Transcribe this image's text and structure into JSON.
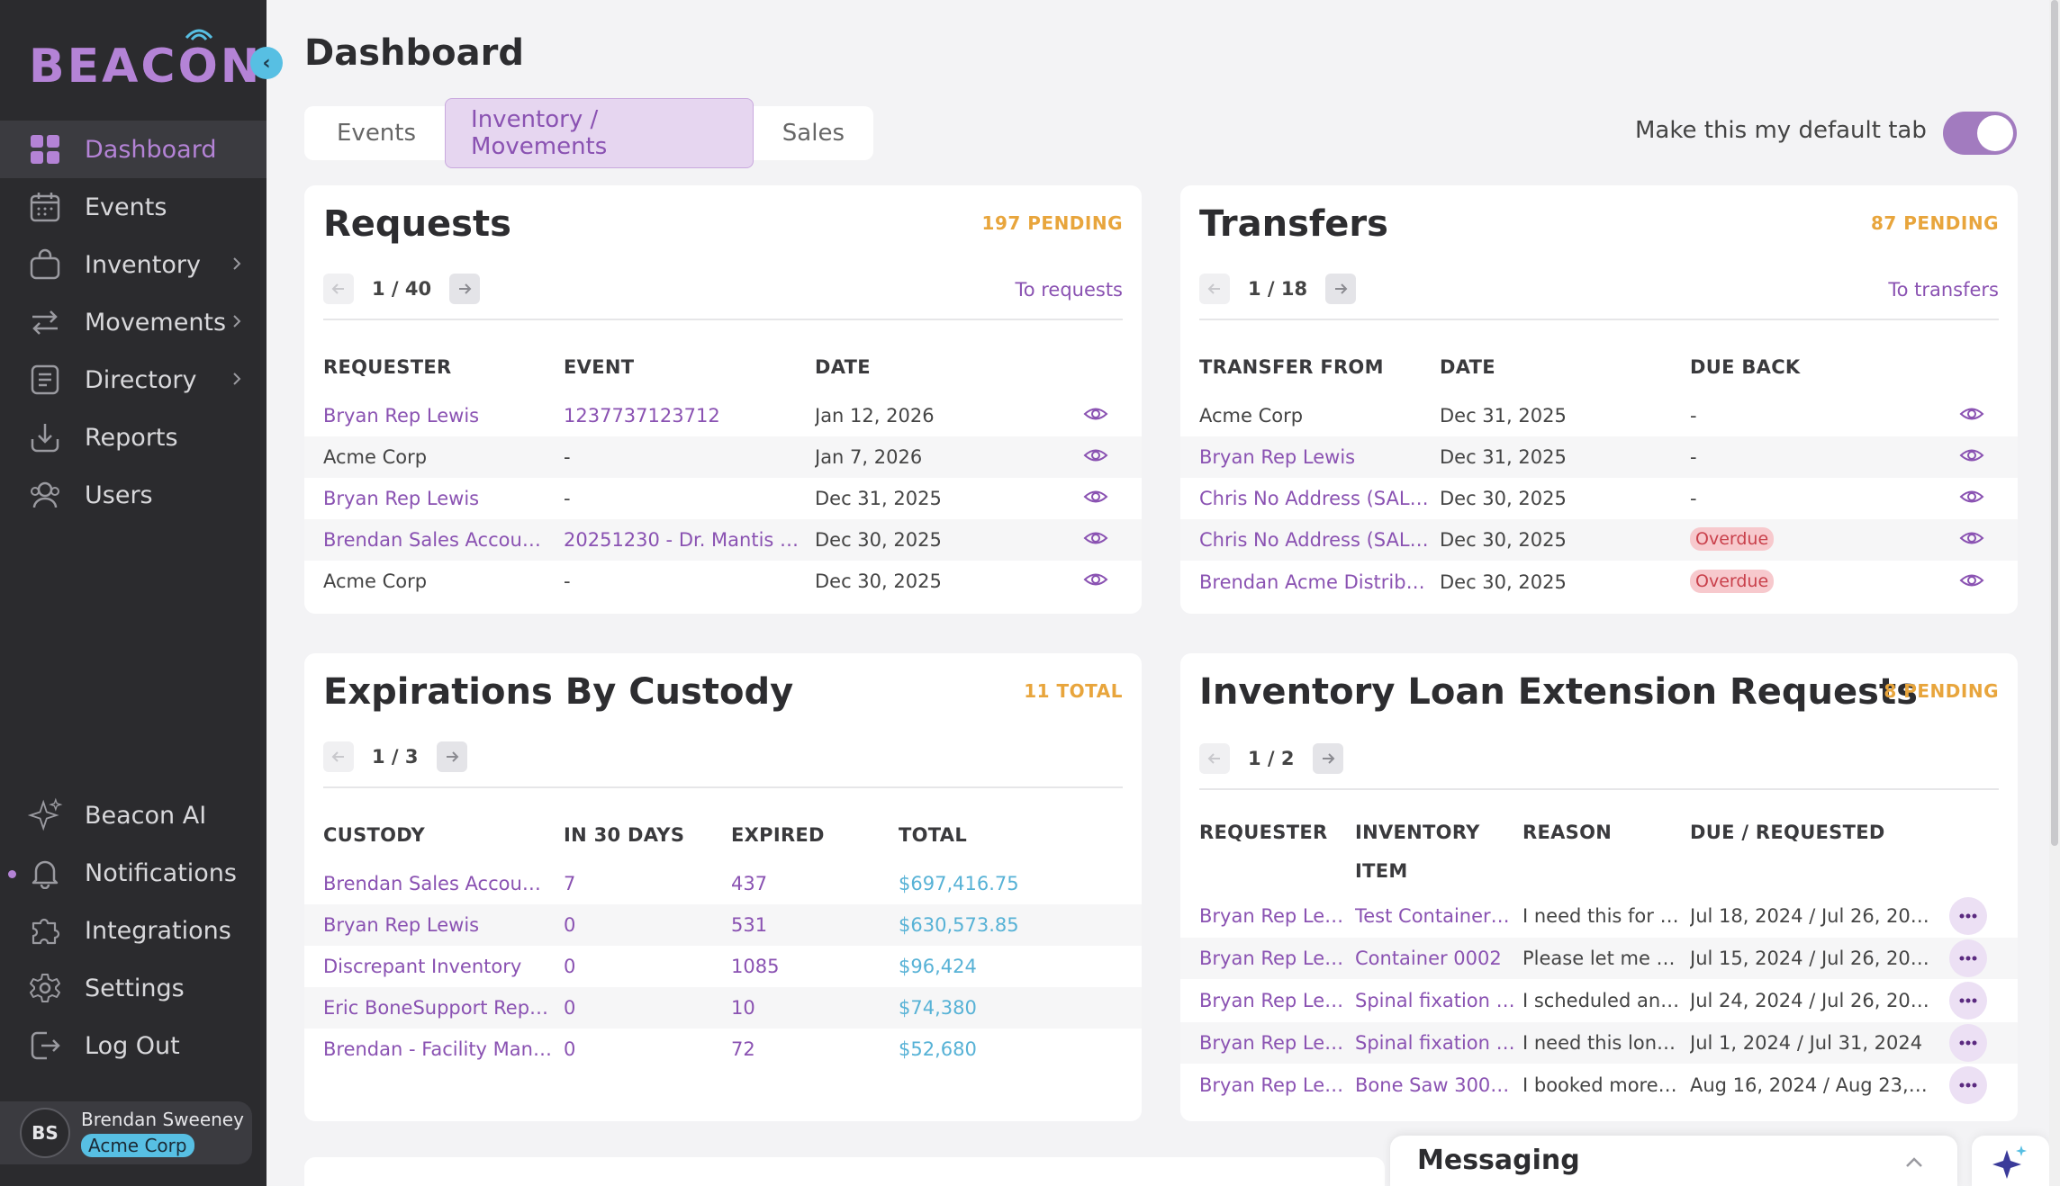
{
  "app": {
    "logo_text_pre": "BEAC",
    "logo_text_o": "O",
    "logo_text_post": "N"
  },
  "sidebar": {
    "items": [
      {
        "label": "Dashboard",
        "icon": "grid-icon",
        "active": true
      },
      {
        "label": "Events",
        "icon": "calendar-icon"
      },
      {
        "label": "Inventory",
        "icon": "bag-icon",
        "has_children": true
      },
      {
        "label": "Movements",
        "icon": "arrows-icon",
        "has_children": true
      },
      {
        "label": "Directory",
        "icon": "list-icon",
        "has_children": true
      },
      {
        "label": "Reports",
        "icon": "download-icon"
      },
      {
        "label": "Users",
        "icon": "users-icon"
      }
    ],
    "bottom_items": [
      {
        "label": "Beacon AI",
        "icon": "sparkle-icon"
      },
      {
        "label": "Notifications",
        "icon": "bell-icon"
      },
      {
        "label": "Integrations",
        "icon": "puzzle-icon"
      },
      {
        "label": "Settings",
        "icon": "gear-icon"
      },
      {
        "label": "Log Out",
        "icon": "logout-icon"
      }
    ],
    "user": {
      "initials": "BS",
      "name": "Brendan Sweeney",
      "org": "Acme Corp"
    }
  },
  "header": {
    "title": "Dashboard",
    "tabs": [
      "Events",
      "Inventory / Movements",
      "Sales"
    ],
    "active_tab": "Inventory / Movements",
    "default_label": "Make this my default tab",
    "default_on": true
  },
  "requests": {
    "title": "Requests",
    "badge": "197 PENDING",
    "page": "1 / 40",
    "link": "To requests",
    "columns": [
      "REQUESTER",
      "EVENT",
      "DATE"
    ],
    "rows": [
      {
        "requester": "Bryan Rep Lewis",
        "event": "1237737123712",
        "date": "Jan 12, 2026",
        "req_link": true,
        "ev_link": true
      },
      {
        "requester": "Acme Corp",
        "event": "-",
        "date": "Jan 7, 2026",
        "req_link": false,
        "ev_link": false
      },
      {
        "requester": "Bryan Rep Lewis",
        "event": "-",
        "date": "Dec 31, 2025",
        "req_link": true,
        "ev_link": false
      },
      {
        "requester": "Brendan Sales Account …",
        "event": "20251230 - Dr. Mantis Tob…",
        "date": "Dec 30, 2025",
        "req_link": true,
        "ev_link": true
      },
      {
        "requester": "Acme Corp",
        "event": "-",
        "date": "Dec 30, 2025",
        "req_link": false,
        "ev_link": false
      }
    ]
  },
  "transfers": {
    "title": "Transfers",
    "badge": "87 PENDING",
    "page": "1 / 18",
    "link": "To transfers",
    "columns": [
      "TRANSFER FROM",
      "DATE",
      "DUE BACK"
    ],
    "rows": [
      {
        "from": "Acme Corp",
        "date": "Dec 31, 2025",
        "due": "-",
        "link": false,
        "overdue": false
      },
      {
        "from": "Bryan Rep Lewis",
        "date": "Dec 31, 2025",
        "due": "-",
        "link": true,
        "overdue": false
      },
      {
        "from": "Chris No Address (SALES)",
        "date": "Dec 30, 2025",
        "due": "-",
        "link": true,
        "overdue": false
      },
      {
        "from": "Chris No Address (SALES)",
        "date": "Dec 30, 2025",
        "due": "Overdue",
        "link": true,
        "overdue": true
      },
      {
        "from": "Brendan Acme Distribut…",
        "date": "Dec 30, 2025",
        "due": "Overdue",
        "link": true,
        "overdue": true
      }
    ]
  },
  "expirations": {
    "title": "Expirations By Custody",
    "badge": "11 TOTAL",
    "page": "1 / 3",
    "columns": [
      "CUSTODY",
      "IN 30 DAYS",
      "EXPIRED",
      "TOTAL"
    ],
    "rows": [
      {
        "custody": "Brendan Sales Account …",
        "in30": "7",
        "expired": "437",
        "total": "$697,416.75"
      },
      {
        "custody": "Bryan Rep Lewis",
        "in30": "0",
        "expired": "531",
        "total": "$630,573.85"
      },
      {
        "custody": "Discrepant Inventory",
        "in30": "0",
        "expired": "1085",
        "total": "$96,424"
      },
      {
        "custody": "Eric BoneSupport Rep T…",
        "in30": "0",
        "expired": "10",
        "total": "$74,380"
      },
      {
        "custody": "Brendan - Facility Mana…",
        "in30": "0",
        "expired": "72",
        "total": "$52,680"
      }
    ]
  },
  "loans": {
    "title": "Inventory Loan Extension Requests",
    "badge": "8 PENDING",
    "page": "1 / 2",
    "columns": [
      "REQUESTER",
      "INVENTORY",
      "ITEM",
      "REASON",
      "DUE / REQUESTED"
    ],
    "rows": [
      {
        "requester": "Bryan Rep Lew…",
        "item": "Test Container …",
        "reason": "I need this for a…",
        "due": "Jul 18, 2024 / Jul 26, 2024"
      },
      {
        "requester": "Bryan Rep Lew…",
        "item": "Container 0002",
        "reason": "Please let me h…",
        "due": "Jul 15, 2024 / Jul 26, 2024"
      },
      {
        "requester": "Bryan Rep Lew…",
        "item": "Spinal fixation r…",
        "reason": "I scheduled an…",
        "due": "Jul 24, 2024 / Jul 26, 2024"
      },
      {
        "requester": "Bryan Rep Lew…",
        "item": "Spinal fixation r…",
        "reason": "I need this long…",
        "due": "Jul 1, 2024 / Jul 31, 2024"
      },
      {
        "requester": "Bryan Rep Lew…",
        "item": "Bone Saw 3000™",
        "reason": "I booked more …",
        "due": "Aug 16, 2024 / Aug 23, 20…"
      }
    ]
  },
  "messaging": {
    "title": "Messaging"
  },
  "colors": {
    "accent": "#8a52b2",
    "badge": "#e8a53c",
    "sidebar": "#2b2b2e",
    "money": "#57b2d6",
    "overdue": "#c9404b"
  }
}
